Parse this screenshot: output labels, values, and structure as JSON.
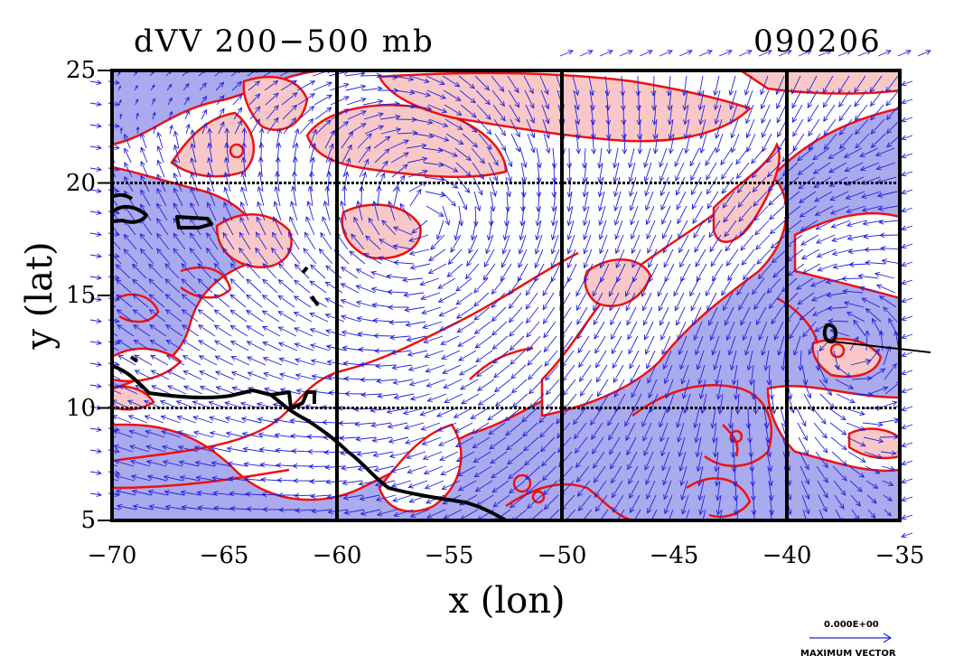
{
  "header": {
    "title": "dVV 200−500 mb",
    "date": "090206"
  },
  "axes": {
    "xlabel": "x (lon)",
    "ylabel": "y (lat)",
    "x_ticks": [
      "−70",
      "−65",
      "−60",
      "−55",
      "−50",
      "−45",
      "−40",
      "−35"
    ],
    "y_ticks": [
      "25",
      "20",
      "15",
      "10",
      "5"
    ],
    "x_range": [
      -70,
      -35
    ],
    "y_range": [
      5,
      25
    ]
  },
  "legend": {
    "vector_value": "0.000E+00",
    "vector_label": "MAXIMUM VECTOR"
  },
  "colors": {
    "negative_fill": "#aaaaee",
    "positive_fill": "#f8c8c8",
    "contour": "#ee1111",
    "vectors": "#2222dd",
    "coast": "#000000",
    "frame": "#000000"
  }
}
